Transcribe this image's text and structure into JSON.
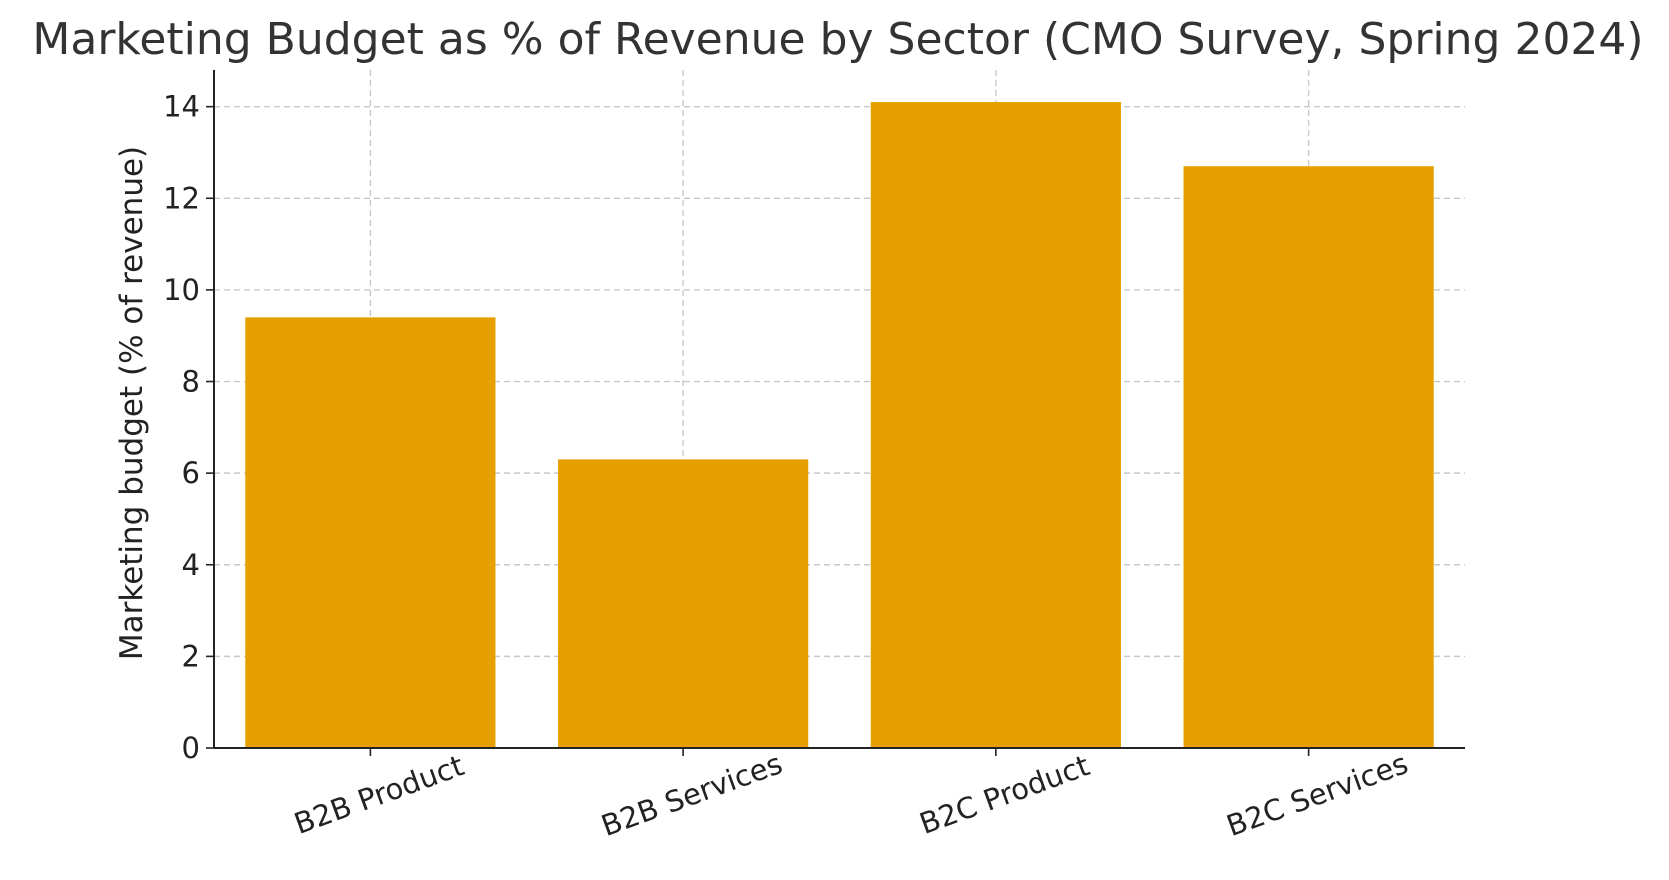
{
  "chart_data": {
    "type": "bar",
    "title": "Marketing Budget as % of Revenue by Sector (CMO Survey, Spring 2024)",
    "xlabel": "",
    "ylabel": "Marketing budget (% of revenue)",
    "categories": [
      "B2B Product",
      "B2B Services",
      "B2C Product",
      "B2C Services"
    ],
    "values": [
      9.4,
      6.3,
      14.1,
      12.7
    ],
    "ylim": [
      0,
      14.8
    ],
    "yticks": [
      0,
      2,
      4,
      6,
      8,
      10,
      12,
      14
    ],
    "grid": true,
    "bar_color": "#E5A000",
    "x_tick_rotation_deg": -20
  }
}
